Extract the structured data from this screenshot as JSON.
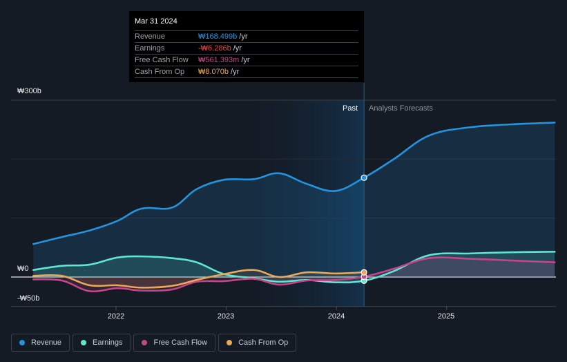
{
  "tooltip": {
    "date": "Mar 31 2024",
    "rows": [
      {
        "label": "Revenue",
        "value": "₩168.499b",
        "unit": "/yr",
        "color": "#2394df"
      },
      {
        "label": "Earnings",
        "value": "-₩6.286b",
        "unit": "/yr",
        "color": "#e64646"
      },
      {
        "label": "Free Cash Flow",
        "value": "₩561.393m",
        "unit": "/yr",
        "color": "#c4468a"
      },
      {
        "label": "Cash From Op",
        "value": "₩8.070b",
        "unit": "/yr",
        "color": "#e8a95a"
      }
    ]
  },
  "labels": {
    "past": "Past",
    "forecast": "Analysts Forecasts"
  },
  "legend": [
    {
      "label": "Revenue",
      "color": "#2394df"
    },
    {
      "label": "Earnings",
      "color": "#5ee6d0"
    },
    {
      "label": "Free Cash Flow",
      "color": "#c4468a"
    },
    {
      "label": "Cash From Op",
      "color": "#e8a95a"
    }
  ],
  "chart_data": {
    "type": "area",
    "title": "",
    "xlabel": "",
    "ylabel": "",
    "ylim": [
      -50,
      300
    ],
    "xlim": [
      2021.25,
      2025.98
    ],
    "y_ticks": [
      {
        "value": 300,
        "label": "₩300b"
      },
      {
        "value": 0,
        "label": "₩0"
      },
      {
        "value": -50,
        "label": "-₩50b"
      }
    ],
    "x_ticks": [
      {
        "value": 2022,
        "label": "2022"
      },
      {
        "value": 2023,
        "label": "2023"
      },
      {
        "value": 2024,
        "label": "2024"
      },
      {
        "value": 2025,
        "label": "2025"
      }
    ],
    "gridlines": [
      300,
      200,
      100,
      0,
      -50
    ],
    "past_region": [
      2023.24,
      2024.25
    ],
    "divider_x": 2024.25,
    "unit": "₩ billions /yr",
    "series": [
      {
        "name": "Revenue",
        "color": "#2394df",
        "x": [
          2021.25,
          2021.51,
          2021.76,
          2022.01,
          2022.23,
          2022.51,
          2022.73,
          2022.98,
          2023.25,
          2023.48,
          2023.73,
          2023.99,
          2024.25,
          2024.52,
          2024.84,
          2025.21,
          2025.59,
          2025.98
        ],
        "values": [
          56,
          68,
          79,
          95,
          116,
          118,
          149,
          165,
          166,
          176,
          158,
          146,
          168.5,
          200,
          240,
          254,
          259,
          262
        ]
      },
      {
        "name": "Earnings",
        "color": "#5ee6d0",
        "x": [
          2021.25,
          2021.51,
          2021.76,
          2022.01,
          2022.23,
          2022.51,
          2022.73,
          2022.98,
          2023.25,
          2023.48,
          2023.73,
          2023.99,
          2024.25,
          2024.52,
          2024.84,
          2025.21,
          2025.59,
          2025.98
        ],
        "values": [
          12,
          19,
          21,
          33,
          35,
          32,
          25,
          5,
          -2,
          -8,
          -5,
          -9,
          -6.3,
          10,
          37,
          40,
          42,
          43
        ]
      },
      {
        "name": "Free Cash Flow",
        "color": "#c4468a",
        "x": [
          2021.25,
          2021.51,
          2021.76,
          2022.01,
          2022.23,
          2022.51,
          2022.73,
          2022.98,
          2023.25,
          2023.48,
          2023.73,
          2023.99,
          2024.25,
          2024.52,
          2024.84,
          2025.21,
          2025.59,
          2025.98
        ],
        "values": [
          -4,
          -6,
          -24,
          -19,
          -23,
          -21,
          -8,
          -7,
          -3,
          -13,
          -6,
          -5,
          0.56,
          14,
          32,
          31,
          28,
          25
        ]
      },
      {
        "name": "Cash From Op",
        "color": "#e8a95a",
        "x": [
          2021.25,
          2021.51,
          2021.76,
          2022.01,
          2022.23,
          2022.51,
          2022.73,
          2022.98,
          2023.25,
          2023.48,
          2023.73,
          2023.99,
          2024.25
        ],
        "values": [
          2,
          2,
          -14,
          -14,
          -18,
          -15,
          -5,
          5,
          12,
          0,
          8,
          6,
          8.07
        ]
      }
    ]
  }
}
